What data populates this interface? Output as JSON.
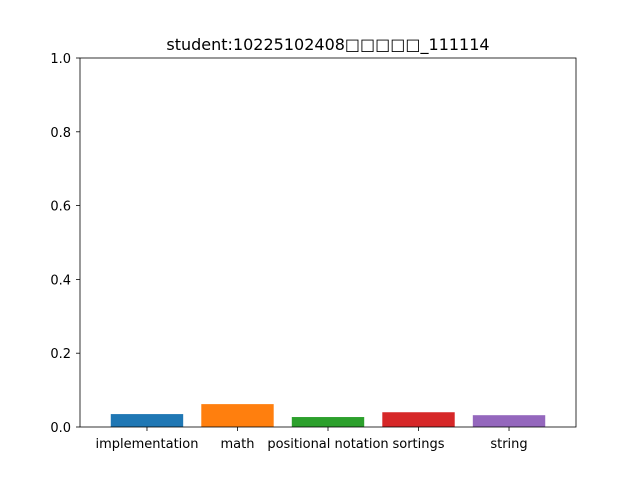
{
  "chart_data": {
    "type": "bar",
    "title": "student:10225102408□□□□□_111114",
    "xlabel": "",
    "ylabel": "",
    "categories": [
      "implementation",
      "math",
      "positional notation",
      "sortings",
      "string"
    ],
    "values": [
      0.035,
      0.062,
      0.027,
      0.04,
      0.032
    ],
    "colors": [
      "#1f77b4",
      "#ff7f0e",
      "#2ca02c",
      "#d62728",
      "#9467bd"
    ],
    "ylim": [
      0,
      1.0
    ],
    "yticks": [
      "0.0",
      "0.2",
      "0.4",
      "0.6",
      "0.8",
      "1.0"
    ],
    "grid": false,
    "legend": "none"
  }
}
